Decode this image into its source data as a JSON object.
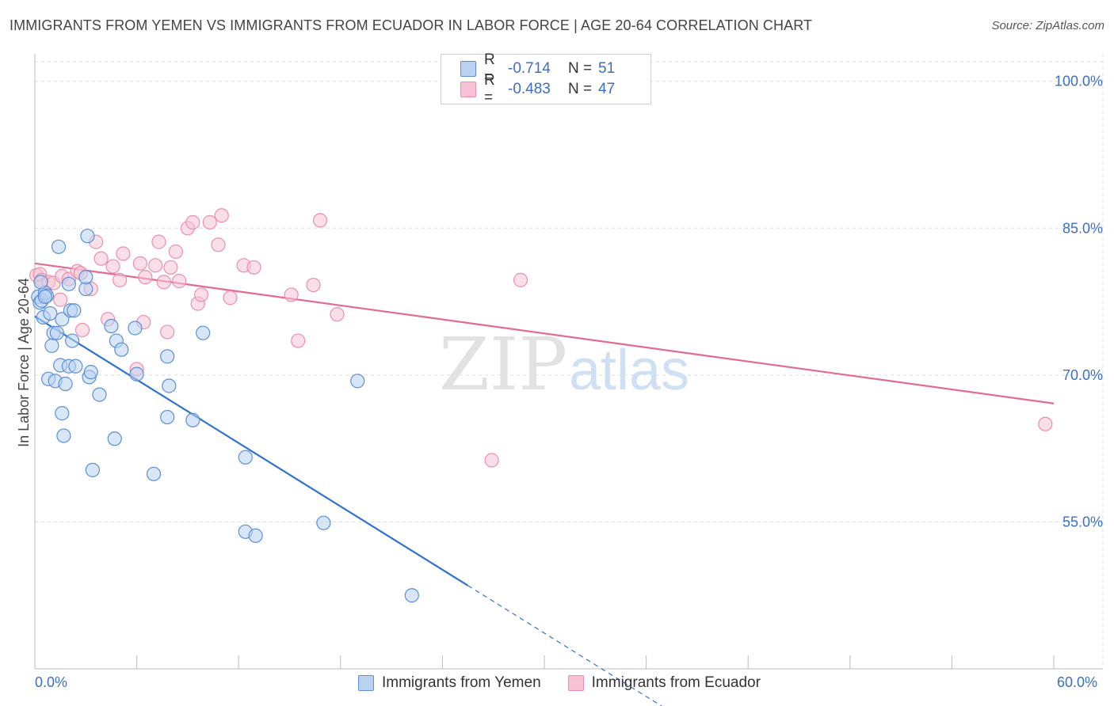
{
  "title": "IMMIGRANTS FROM YEMEN VS IMMIGRANTS FROM ECUADOR IN LABOR FORCE | AGE 20-64 CORRELATION CHART",
  "source": "Source: ZipAtlas.com",
  "watermark": {
    "zip": "ZIP",
    "atlas": "atlas"
  },
  "legend": {
    "rows": [
      {
        "r_label": "R =",
        "r_value": "-0.714",
        "n_label": "N =",
        "n_value": "51"
      },
      {
        "r_label": "R =",
        "r_value": "-0.483",
        "n_label": "N =",
        "n_value": "47"
      }
    ]
  },
  "bottom_legend": [
    "Immigrants from Yemen",
    "Immigrants from Ecuador"
  ],
  "x_axis_labels": {
    "min": "0.0%",
    "max": "60.0%"
  },
  "colors": {
    "yemen_fill": "#b9d2f2",
    "yemen_stroke": "#5b8fd6",
    "yemen_line": "#2f72d0",
    "ecuador_fill": "#f8c4d4",
    "ecuador_stroke": "#ea8fae",
    "ecuador_line": "#e36a93",
    "axis_label": "#3b6fc4",
    "grid": "#dddddd"
  },
  "chart_data": {
    "type": "scatter",
    "title": "IMMIGRANTS FROM YEMEN VS IMMIGRANTS FROM ECUADOR IN LABOR FORCE | AGE 20-64 CORRELATION CHART",
    "xlabel": "",
    "ylabel": "In Labor Force | Age 20-64",
    "xlim": [
      0,
      60
    ],
    "ylim": [
      40,
      102
    ],
    "y_ticks": [
      {
        "value": 55,
        "label": "55.0%"
      },
      {
        "value": 70,
        "label": "70.0%"
      },
      {
        "value": 85,
        "label": "85.0%"
      },
      {
        "value": 100,
        "label": "100.0%"
      }
    ],
    "series": [
      {
        "name": "Immigrants from Yemen",
        "r": -0.714,
        "n": 51,
        "trend": {
          "x0": 0,
          "y0": 76.0,
          "x1": 25.5,
          "y1": 48.5,
          "dash_to_x": 37.0
        },
        "points": [
          [
            0.2,
            78.0
          ],
          [
            0.3,
            77.4
          ],
          [
            0.4,
            77.6
          ],
          [
            0.5,
            75.9
          ],
          [
            0.6,
            78.4
          ],
          [
            0.7,
            78.1
          ],
          [
            0.8,
            69.6
          ],
          [
            0.9,
            76.3
          ],
          [
            1.0,
            73.0
          ],
          [
            1.1,
            74.3
          ],
          [
            1.2,
            69.4
          ],
          [
            1.3,
            74.3
          ],
          [
            1.4,
            83.1
          ],
          [
            1.5,
            71.0
          ],
          [
            1.6,
            75.7
          ],
          [
            1.6,
            66.1
          ],
          [
            1.7,
            63.8
          ],
          [
            1.8,
            69.1
          ],
          [
            2.0,
            70.9
          ],
          [
            2.0,
            79.3
          ],
          [
            2.1,
            76.6
          ],
          [
            2.2,
            73.5
          ],
          [
            2.3,
            76.6
          ],
          [
            2.4,
            70.9
          ],
          [
            3.0,
            78.8
          ],
          [
            3.0,
            80.0
          ],
          [
            3.1,
            84.2
          ],
          [
            3.2,
            69.8
          ],
          [
            3.3,
            70.3
          ],
          [
            3.4,
            60.3
          ],
          [
            3.8,
            68.0
          ],
          [
            4.5,
            75.0
          ],
          [
            4.7,
            63.5
          ],
          [
            4.8,
            73.5
          ],
          [
            5.1,
            72.6
          ],
          [
            5.9,
            74.8
          ],
          [
            6.0,
            70.1
          ],
          [
            7.0,
            59.9
          ],
          [
            7.8,
            71.9
          ],
          [
            7.8,
            65.7
          ],
          [
            7.9,
            68.9
          ],
          [
            9.3,
            65.4
          ],
          [
            9.9,
            74.3
          ],
          [
            12.4,
            61.6
          ],
          [
            12.4,
            54.0
          ],
          [
            13.0,
            53.6
          ],
          [
            17.0,
            54.9
          ],
          [
            19.0,
            69.4
          ],
          [
            22.2,
            47.5
          ],
          [
            0.35,
            79.5
          ],
          [
            0.6,
            78.0
          ]
        ]
      },
      {
        "name": "Immigrants from Ecuador",
        "r": -0.483,
        "n": 47,
        "trend": {
          "x0": 0,
          "y0": 81.4,
          "x1": 60,
          "y1": 67.1
        },
        "points": [
          [
            0.1,
            80.2
          ],
          [
            0.3,
            80.3
          ],
          [
            0.4,
            79.7
          ],
          [
            0.8,
            79.5
          ],
          [
            1.1,
            79.4
          ],
          [
            1.5,
            77.7
          ],
          [
            1.6,
            80.1
          ],
          [
            2.0,
            79.8
          ],
          [
            2.5,
            80.6
          ],
          [
            2.7,
            80.4
          ],
          [
            2.8,
            74.6
          ],
          [
            3.3,
            78.8
          ],
          [
            3.6,
            83.6
          ],
          [
            3.9,
            81.9
          ],
          [
            4.3,
            75.7
          ],
          [
            4.6,
            81.1
          ],
          [
            5.0,
            79.7
          ],
          [
            5.2,
            82.4
          ],
          [
            6.0,
            70.6
          ],
          [
            6.2,
            81.4
          ],
          [
            6.4,
            75.4
          ],
          [
            6.5,
            80.0
          ],
          [
            7.1,
            81.2
          ],
          [
            7.3,
            83.6
          ],
          [
            7.6,
            79.5
          ],
          [
            7.8,
            74.4
          ],
          [
            8.0,
            81.0
          ],
          [
            8.3,
            82.6
          ],
          [
            8.5,
            79.6
          ],
          [
            9.0,
            85.0
          ],
          [
            9.3,
            85.6
          ],
          [
            9.6,
            77.3
          ],
          [
            9.8,
            78.2
          ],
          [
            10.3,
            85.6
          ],
          [
            10.8,
            83.3
          ],
          [
            11.0,
            86.3
          ],
          [
            11.5,
            77.9
          ],
          [
            12.3,
            81.2
          ],
          [
            12.9,
            81.0
          ],
          [
            15.1,
            78.2
          ],
          [
            15.5,
            73.5
          ],
          [
            16.4,
            79.2
          ],
          [
            16.8,
            85.8
          ],
          [
            17.8,
            76.2
          ],
          [
            26.9,
            61.3
          ],
          [
            28.6,
            79.7
          ],
          [
            59.5,
            65.0
          ]
        ]
      }
    ]
  }
}
